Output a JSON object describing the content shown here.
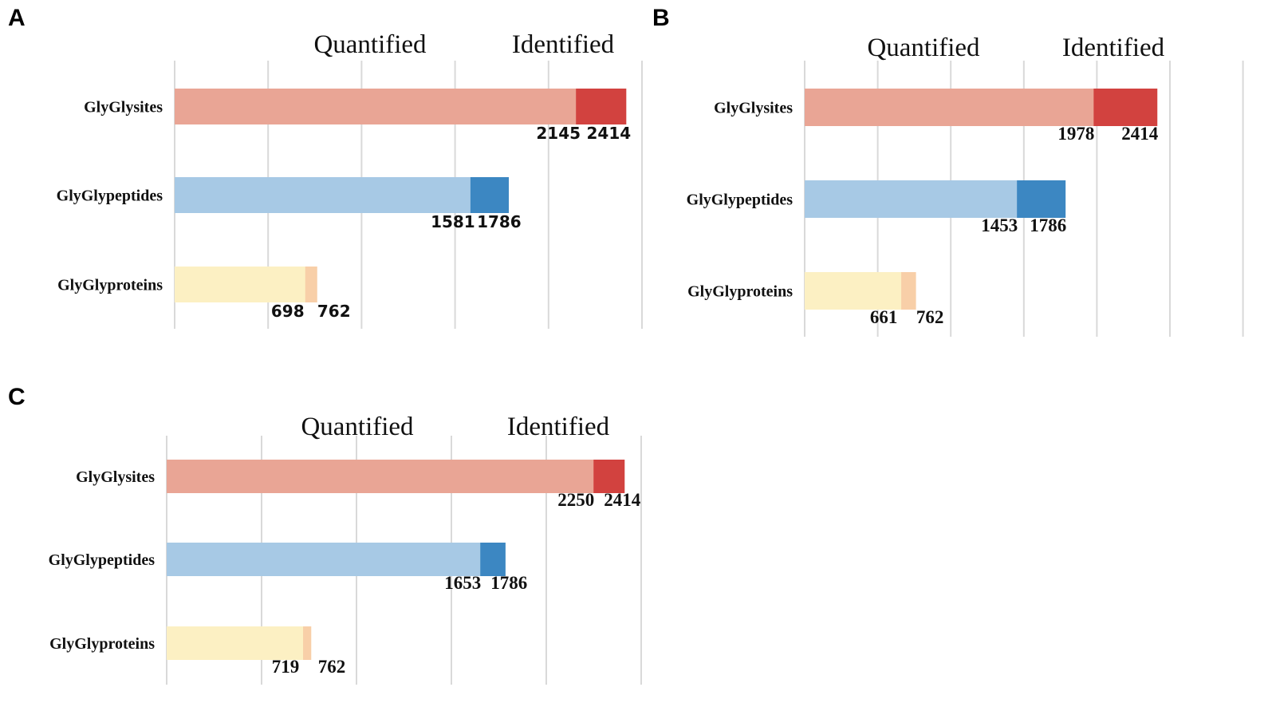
{
  "colors": {
    "sites_quantified": "#e9a595",
    "sites_identified": "#d2423f",
    "peptides_quantified": "#a7c9e5",
    "peptides_identified": "#3c87c2",
    "proteins_quantified": "#fcf0c3",
    "proteins_identified": "#f8cfa8",
    "grid": "#d9d9d9"
  },
  "chart_data": [
    {
      "panel": "A",
      "type": "bar",
      "orientation": "horizontal",
      "stacked": "overlay",
      "legend": [
        "Quantified",
        "Identified"
      ],
      "categories": [
        "GlyGlysites",
        "GlyGlypeptides",
        "GlyGlyproteins"
      ],
      "series": [
        {
          "name": "Quantified",
          "values": [
            2145,
            1581,
            698
          ]
        },
        {
          "name": "Identified",
          "values": [
            2414,
            1786,
            762
          ]
        }
      ],
      "xlim": [
        0,
        2500
      ],
      "grid": true
    },
    {
      "panel": "B",
      "type": "bar",
      "orientation": "horizontal",
      "stacked": "overlay",
      "legend": [
        "Quantified",
        "Identified"
      ],
      "categories": [
        "GlyGlysites",
        "GlyGlypeptides",
        "GlyGlyproteins"
      ],
      "series": [
        {
          "name": "Quantified",
          "values": [
            1978,
            1453,
            661
          ]
        },
        {
          "name": "Identified",
          "values": [
            2414,
            1786,
            762
          ]
        }
      ],
      "xlim": [
        0,
        3000
      ],
      "grid": true
    },
    {
      "panel": "C",
      "type": "bar",
      "orientation": "horizontal",
      "stacked": "overlay",
      "legend": [
        "Quantified",
        "Identified"
      ],
      "categories": [
        "GlyGlysites",
        "GlyGlypeptides",
        "GlyGlyproteins"
      ],
      "series": [
        {
          "name": "Quantified",
          "values": [
            2250,
            1653,
            719
          ]
        },
        {
          "name": "Identified",
          "values": [
            2414,
            1786,
            762
          ]
        }
      ],
      "xlim": [
        0,
        2500
      ],
      "grid": true
    }
  ]
}
